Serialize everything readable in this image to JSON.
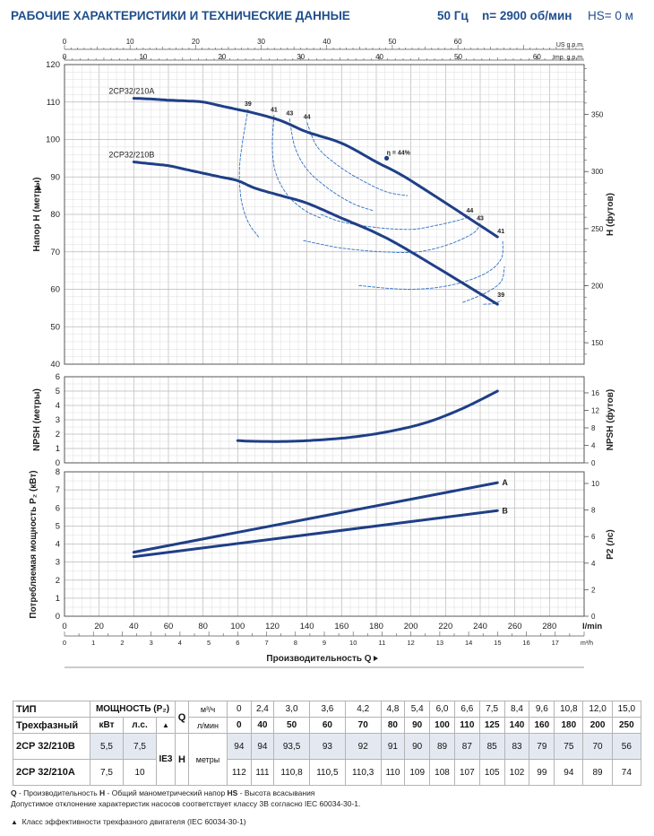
{
  "header": {
    "title": "РАБОЧИЕ ХАРАКТЕРИСТИКИ И ТЕХНИЧЕСКИЕ ДАННЫЕ",
    "frequency": "50 Гц",
    "speed": "n= 2900 об/мин",
    "suction": "HS= 0 м"
  },
  "colors": {
    "curve": "#1f3f87",
    "efficiency": "#2f6fc6",
    "header": "#1f4e8c",
    "grid": "#c8c8c8",
    "table_shade": "#e4e9f1"
  },
  "chart_data": [
    {
      "type": "line",
      "name": "head",
      "top_scale": {
        "us_label": "US g.p.m.",
        "us_ticks": [
          0,
          10,
          20,
          30,
          40,
          50,
          60
        ],
        "imp_label": "Imp. g.p.m.",
        "imp_ticks": [
          0,
          10,
          20,
          30,
          40,
          50,
          60
        ]
      },
      "ylabel": "Напор H (метры)",
      "ylabel_right": "H (футов)",
      "ylim": [
        40,
        120
      ],
      "yticks": [
        40,
        50,
        60,
        70,
        80,
        90,
        100,
        110,
        120
      ],
      "yticks_right": [
        150,
        200,
        250,
        300,
        350
      ],
      "xlim": [
        0,
        300
      ],
      "series": [
        {
          "name": "2CP32/210A",
          "x": [
            40,
            50,
            60,
            70,
            80,
            90,
            100,
            110,
            125,
            140,
            160,
            180,
            200,
            250
          ],
          "y": [
            111,
            110.8,
            110.5,
            110.3,
            110,
            109,
            108,
            107,
            105,
            102,
            99,
            94,
            89,
            74
          ]
        },
        {
          "name": "2CP32/210B",
          "x": [
            40,
            50,
            60,
            70,
            80,
            90,
            100,
            110,
            125,
            140,
            160,
            180,
            200,
            250
          ],
          "y": [
            94,
            93.5,
            93,
            92,
            91,
            90,
            89,
            87,
            85,
            83,
            79,
            75,
            70,
            56
          ]
        }
      ],
      "efficiency_labels": [
        {
          "text": "39",
          "x": 106,
          "y": 108
        },
        {
          "text": "41",
          "x": 121,
          "y": 106.5
        },
        {
          "text": "43",
          "x": 130,
          "y": 105.5
        },
        {
          "text": "44",
          "x": 140,
          "y": 104.5
        },
        {
          "text": "η = 44%",
          "x": 186,
          "y": 95
        },
        {
          "text": "44",
          "x": 234,
          "y": 79.5
        },
        {
          "text": "43",
          "x": 240,
          "y": 77.5
        },
        {
          "text": "41",
          "x": 252,
          "y": 74
        },
        {
          "text": "39",
          "x": 252,
          "y": 57
        }
      ]
    },
    {
      "type": "line",
      "name": "npsh",
      "ylabel": "NPSH (метры)",
      "ylabel_right": "NPSH (футов)",
      "ylim": [
        0,
        6
      ],
      "yticks": [
        0,
        1,
        2,
        3,
        4,
        5,
        6
      ],
      "yticks_right": [
        0,
        4,
        8,
        12,
        16
      ],
      "xlim": [
        0,
        300
      ],
      "series": [
        {
          "name": "",
          "x": [
            100,
            110,
            130,
            150,
            170,
            190,
            210,
            230,
            250
          ],
          "y": [
            1.55,
            1.5,
            1.5,
            1.62,
            1.85,
            2.25,
            2.85,
            3.8,
            5.0
          ]
        }
      ]
    },
    {
      "type": "line",
      "name": "power",
      "ylabel": "Потребляемая мощность P₂ (кВт)",
      "ylabel_right": "P2 (лс)",
      "ylim": [
        0,
        8
      ],
      "yticks": [
        0,
        1,
        2,
        3,
        4,
        5,
        6,
        7,
        8
      ],
      "yticks_right": [
        0,
        2,
        4,
        6,
        8,
        10
      ],
      "xlim": [
        0,
        300
      ],
      "xticks_lmin": [
        0,
        20,
        40,
        60,
        80,
        100,
        120,
        140,
        160,
        180,
        200,
        220,
        240,
        260,
        280
      ],
      "xunit_lmin": "l/min",
      "xticks_m3h": [
        0,
        1,
        2,
        3,
        4,
        5,
        6,
        7,
        8,
        9,
        10,
        11,
        12,
        13,
        14,
        15,
        16,
        17
      ],
      "xunit_m3h": "m³/h",
      "xlabel": "Производительность Q",
      "series": [
        {
          "name": "A",
          "x": [
            40,
            250
          ],
          "y": [
            3.55,
            7.4
          ]
        },
        {
          "name": "B",
          "x": [
            40,
            250
          ],
          "y": [
            3.3,
            5.85
          ]
        }
      ]
    }
  ],
  "table": {
    "type_label": "ТИП",
    "power_label": "МОЩНОСТЬ (P₂)",
    "q_label": "Q",
    "unit_m3h": "м³/ч",
    "unit_lmin": "л/мин",
    "phase_label": "Трехфазный",
    "kw_label": "кВт",
    "hp_label": "л.с.",
    "tri": "▲",
    "ie_label": "IE3",
    "h_label": "H",
    "h_unit": "метры",
    "q_m3h": [
      "0",
      "2,4",
      "3,0",
      "3,6",
      "4,2",
      "4,8",
      "5,4",
      "6,0",
      "6,6",
      "7,5",
      "8,4",
      "9,6",
      "10,8",
      "12,0",
      "15,0"
    ],
    "q_lmin": [
      "0",
      "40",
      "50",
      "60",
      "70",
      "80",
      "90",
      "100",
      "110",
      "125",
      "140",
      "160",
      "180",
      "200",
      "250"
    ],
    "rows": [
      {
        "model": "2CP 32/210B",
        "kw": "5,5",
        "hp": "7,5",
        "h": [
          "94",
          "94",
          "93,5",
          "93",
          "92",
          "91",
          "90",
          "89",
          "87",
          "85",
          "83",
          "79",
          "75",
          "70",
          "56"
        ]
      },
      {
        "model": "2CP 32/210A",
        "kw": "7,5",
        "hp": "10",
        "h": [
          "112",
          "111",
          "110,8",
          "110,5",
          "110,3",
          "110",
          "109",
          "108",
          "107",
          "105",
          "102",
          "99",
          "94",
          "89",
          "74"
        ]
      }
    ]
  },
  "footnotes": {
    "line1_q": "Q",
    "line1_a": " - Производительность  ",
    "line1_h": "H",
    "line1_b": " - Общий манометрический напор  ",
    "line1_hs": "HS",
    "line1_c": " - Высота всасывания",
    "line2": "Допустимое отклонение характеристик насосов соответствует классу 3В согласно IEC 60034-30-1.",
    "line3": "Класс эффективности трехфазного двигателя (IEC 60034-30-1)"
  }
}
